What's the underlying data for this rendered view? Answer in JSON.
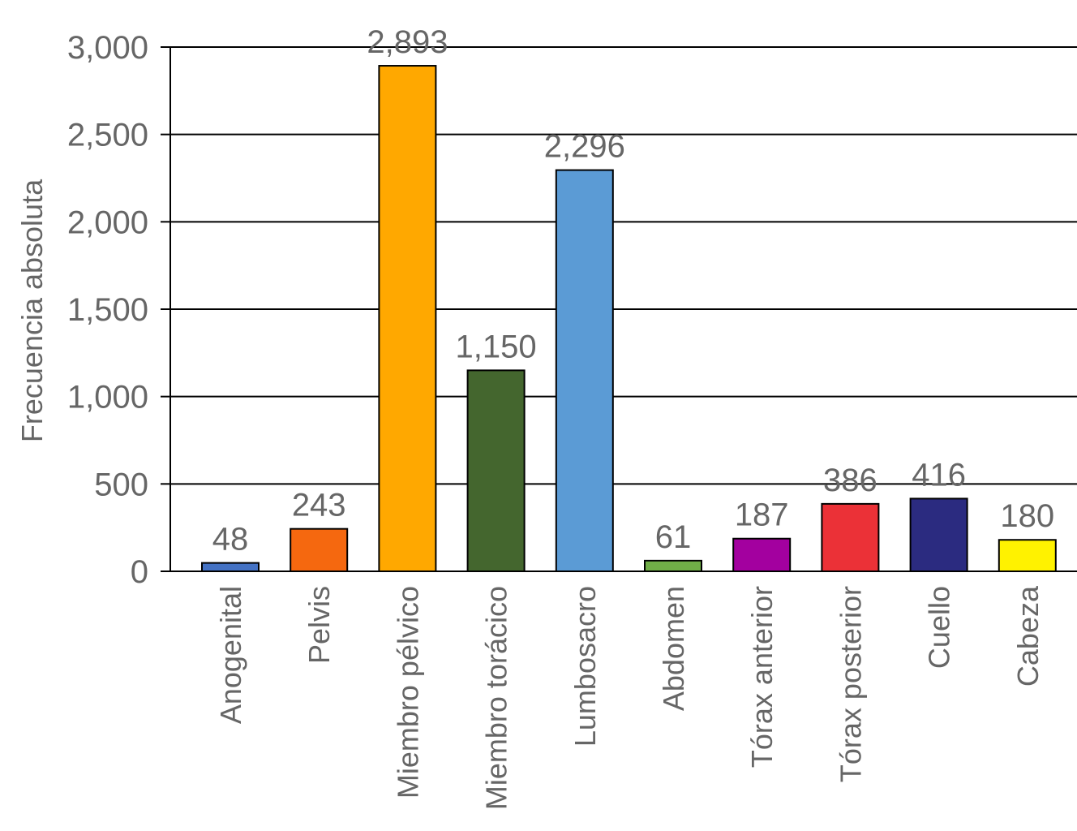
{
  "chart_data": {
    "type": "bar",
    "title": "",
    "xlabel": "",
    "ylabel": "Frecuencia absoluta",
    "ylim": [
      0,
      3000
    ],
    "yticks": [
      0,
      500,
      1000,
      1500,
      2000,
      2500,
      3000
    ],
    "ytick_labels": [
      "0",
      "500",
      "1,000",
      "1,500",
      "2,000",
      "2,500",
      "3,000"
    ],
    "grid": true,
    "legend": "none",
    "categories": [
      "Anogenital",
      "Pelvis",
      "Miembro pélvico",
      "Miembro torácico",
      "Lumbosacro",
      "Abdomen",
      "Tórax anterior",
      "Tórax posterior",
      "Cuello",
      "Cabeza"
    ],
    "values": [
      48,
      243,
      2893,
      1150,
      2296,
      61,
      187,
      386,
      416,
      180
    ],
    "value_labels": [
      "48",
      "243",
      "2,893",
      "1,150",
      "2,296",
      "61",
      "187",
      "386",
      "416",
      "180"
    ],
    "colors": [
      "#4472c4",
      "#f5680f",
      "#ffa800",
      "#44662e",
      "#5b9bd5",
      "#70ad47",
      "#a3009f",
      "#eb3137",
      "#2b2b80",
      "#fff200"
    ]
  }
}
